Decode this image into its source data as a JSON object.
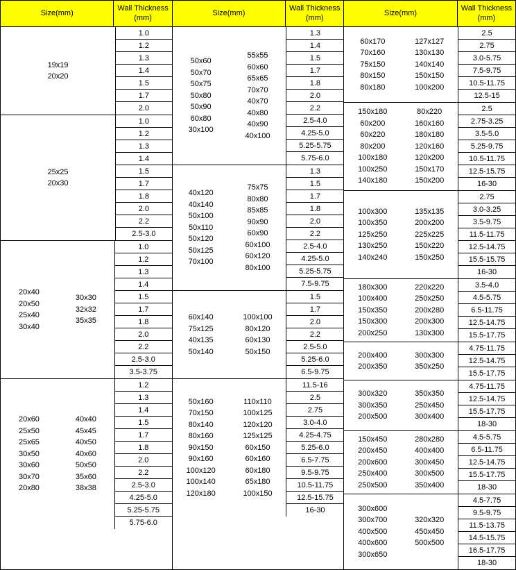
{
  "headers": {
    "size": "Size(mm)",
    "wall": "Wall Thickness\n(mm)"
  },
  "groups": [
    {
      "blocks": [
        {
          "sizes": [
            [
              "19x19",
              "20x20"
            ]
          ],
          "walls": [
            "1.0",
            "1.2",
            "1.3",
            "1.4",
            "1.5",
            "1.7",
            "2.0"
          ]
        },
        {
          "sizes": [
            [
              "25x25",
              "20x30"
            ]
          ],
          "walls": [
            "1.0",
            "1.2",
            "1.3",
            "1.4",
            "1.5",
            "1.7",
            "1.8",
            "2.0",
            "2.2",
            "2.5-3.0"
          ]
        },
        {
          "sizes": [
            [
              "20x40",
              "20x50",
              "25x40",
              "30x40"
            ],
            [
              "30x30",
              "32x32",
              "35x35"
            ]
          ],
          "walls": [
            "1.0",
            "1.2",
            "1.3",
            "1.4",
            "1.5",
            "1.7",
            "1.8",
            "2.0",
            "2.2",
            "2.5-3.0",
            "3.5-3.75"
          ]
        },
        {
          "sizes": [
            [
              "20x60",
              "25x50",
              "25x65",
              "30x50",
              "30x60",
              "30x70",
              "20x80"
            ],
            [
              "40x40",
              "45x45",
              "40x50",
              "40x60",
              "50x50",
              "35x60",
              "38x38"
            ]
          ],
          "walls": [
            "1.2",
            "1.3",
            "1.4",
            "1.5",
            "1.7",
            "1.8",
            "2.0",
            "2.2",
            "2.5-3.0",
            "4.25-5.0",
            "5.25-5.75",
            "5.75-6.0"
          ]
        }
      ]
    },
    {
      "blocks": [
        {
          "sizes": [
            [
              "50x60",
              "50x70",
              "50x75",
              "50x80",
              "50x90",
              "60x80",
              "30x100"
            ],
            [
              "55x55",
              "60x60",
              "65x65",
              "70x70",
              "40x70",
              "40x80",
              "40x90",
              "40x100"
            ]
          ],
          "walls": [
            "1.3",
            "1.4",
            "1.5",
            "1.7",
            "1.8",
            "2.0",
            "2.2",
            "2.5-4.0",
            "4.25-5.0",
            "5.25-5.75",
            "5.75-6.0"
          ]
        },
        {
          "sizes": [
            [
              "40x120",
              "40x140",
              "50x100",
              "50x110",
              "50x120",
              "50x125",
              "70x100"
            ],
            [
              "75x75",
              "80x80",
              "85x85",
              "90x90",
              "60x90",
              "60x100",
              "60x120",
              "80x100"
            ]
          ],
          "walls": [
            "1.3",
            "1.5",
            "1.7",
            "1.8",
            "2.0",
            "2.2",
            "2.5-4.0",
            "4.25-5.0",
            "5.25-5.75",
            "7.5-9.75"
          ]
        },
        {
          "sizes": [
            [
              "60x140",
              "75x125",
              "40x135",
              "50x140"
            ],
            [
              "100x100",
              "80x120",
              "60x130",
              "50x150"
            ]
          ],
          "walls": [
            "1.5",
            "1.7",
            "2.0",
            "2.2",
            "2.5-5.0",
            "5.25-6.0",
            "6.5-9.75"
          ]
        },
        {
          "sizes": [
            [
              "50x160",
              "70x150",
              "80x140",
              "80x160",
              "90x150",
              "90x160",
              "100x120",
              "100x140",
              "120x180"
            ],
            [
              "110x110",
              "100x125",
              "120x120",
              "125x125",
              "60x150",
              "60x160",
              "60x180",
              "65x180",
              "100x150"
            ]
          ],
          "walls": [
            "11.5-16",
            "2.5",
            "2.75",
            "3.0-4.0",
            "4.25-4.75",
            "5.25-6.0",
            "6.5-7.75",
            "9.5-9.75",
            "10.5-11.75",
            "12.5-15.75",
            "16-30"
          ]
        }
      ]
    },
    {
      "blocks": [
        {
          "sizes": [
            [
              "60x170",
              "70x160",
              "75x150",
              "80x150",
              "80x180"
            ],
            [
              "127x127",
              "130x130",
              "140x140",
              "150x150",
              "100x200"
            ]
          ],
          "walls": [
            "2.5",
            "2.75",
            "3.0-5.75",
            "7.5-9.75",
            "10.5-11.75",
            "12.5-15"
          ]
        },
        {
          "sizes": [
            [
              "150x180",
              "60x200",
              "60x220",
              "80x200",
              "100x180",
              "100x250",
              "140x180"
            ],
            [
              "80x220",
              "160x160",
              "180x180",
              "120x160",
              "120x200",
              "150x170",
              "150x200"
            ]
          ],
          "walls": [
            "2.5",
            "2.75-3.25",
            "3.5-5.0",
            "5.25-9.75",
            "10.5-11.75",
            "12.5-15.75",
            "16-30"
          ]
        },
        {
          "sizes": [
            [
              "100x300",
              "100x350",
              "125x250",
              "130x250",
              "140x240"
            ],
            [
              "135x135",
              "200x200",
              "225x225",
              "150x220",
              "150x250"
            ]
          ],
          "walls": [
            "2.75",
            "3.0-3.25",
            "3.5-9.75",
            "11.5-11.75",
            "12.5-14.75",
            "15.5-15.75",
            "16-30"
          ]
        },
        {
          "sizes": [
            [
              "180x300",
              "100x400",
              "150x350",
              "150x300",
              "200x250"
            ],
            [
              "220x220",
              "250x250",
              "200x280",
              "200x300",
              "130x300"
            ]
          ],
          "walls": [
            "3.5-4.0",
            "4.5-5.75",
            "6.5-11.75",
            "12.5-14.75",
            "15.5-17.75"
          ]
        },
        {
          "sizes": [
            [
              "200x400",
              "200x350"
            ],
            [
              "300x300",
              "350x250"
            ]
          ],
          "walls": [
            "4.75-11.75",
            "12.5-14.75",
            "15.5-17.75"
          ]
        },
        {
          "sizes": [
            [
              "300x320",
              "300x350",
              "200x500"
            ],
            [
              "350x350",
              "250x450",
              "300x400"
            ]
          ],
          "walls": [
            "4.75-11.75",
            "12.5-14.75",
            "15.5-17.75",
            "18-30"
          ]
        },
        {
          "sizes": [
            [
              "150x450",
              "200x450",
              "200x600",
              "250x400",
              "250x500"
            ],
            [
              "280x280",
              "400x400",
              "300x450",
              "300x500",
              "350x400"
            ]
          ],
          "walls": [
            "4.5-5.75",
            "6.5-11.75",
            "12.5-14.75",
            "15.5-17.75",
            "18-30"
          ]
        },
        {
          "sizes": [
            [
              "300x600",
              "300x700",
              "400x500",
              "400x600",
              "300x650"
            ],
            [
              "320x320",
              "450x450",
              "500x500"
            ]
          ],
          "walls": [
            "4.5-7.75",
            "9.5-9.75",
            "11.5-13.75",
            "14.5-15.75",
            "16.5-17.75",
            "18-30"
          ]
        }
      ]
    }
  ]
}
